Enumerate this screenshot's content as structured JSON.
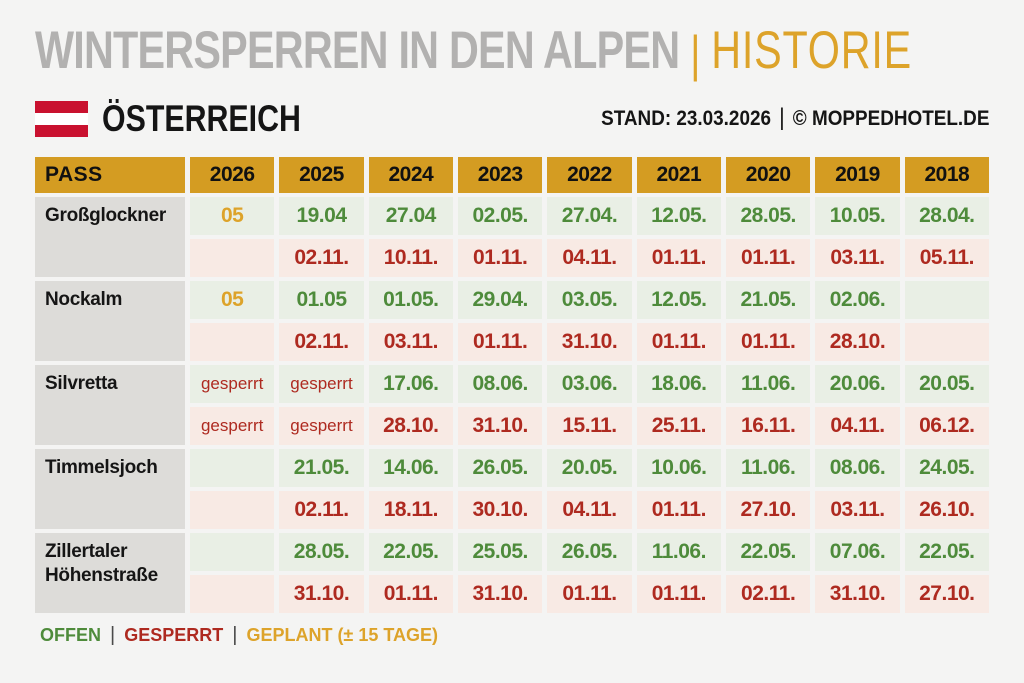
{
  "header": {
    "title": "WINTERSPERREN IN DEN ALPEN",
    "separator": "|",
    "subtitle": "HISTORIE",
    "country": "ÖSTERREICH",
    "stand": "STAND: 23.03.2026",
    "stand_separator": "|",
    "copyright": "© MOPPEDHOTEL.DE"
  },
  "icons": {
    "flag": "austria-flag"
  },
  "chart_data": {
    "type": "table",
    "title": "WINTERSPERREN IN DEN ALPEN | HISTORIE",
    "columns": [
      "PASS",
      "2026",
      "2025",
      "2024",
      "2023",
      "2022",
      "2021",
      "2020",
      "2019",
      "2018"
    ],
    "row_types": [
      "open",
      "close"
    ],
    "passes": [
      {
        "name": "Großglockner",
        "open": [
          {
            "value": "05",
            "kind": "planned"
          },
          "19.04",
          "27.04",
          "02.05.",
          "27.04.",
          "12.05.",
          "28.05.",
          "10.05.",
          "28.04."
        ],
        "close": [
          "",
          "02.11.",
          "10.11.",
          "01.11.",
          "04.11.",
          "01.11.",
          "01.11.",
          "03.11.",
          "05.11."
        ]
      },
      {
        "name": "Nockalm",
        "open": [
          {
            "value": "05",
            "kind": "planned"
          },
          "01.05",
          "01.05.",
          "29.04.",
          "03.05.",
          "12.05.",
          "21.05.",
          "02.06.",
          ""
        ],
        "close": [
          "",
          "02.11.",
          "03.11.",
          "01.11.",
          "31.10.",
          "01.11.",
          "01.11.",
          "28.10.",
          ""
        ]
      },
      {
        "name": "Silvretta",
        "open": [
          {
            "value": "gesperrt",
            "kind": "gesperrt"
          },
          {
            "value": "gesperrt",
            "kind": "gesperrt"
          },
          "17.06.",
          "08.06.",
          "03.06.",
          "18.06.",
          "11.06.",
          "20.06.",
          "20.05."
        ],
        "close": [
          {
            "value": "gesperrt",
            "kind": "gesperrt"
          },
          {
            "value": "gesperrt",
            "kind": "gesperrt"
          },
          "28.10.",
          "31.10.",
          "15.11.",
          "25.11.",
          "16.11.",
          "04.11.",
          "06.12."
        ]
      },
      {
        "name": "Timmelsjoch",
        "open": [
          "",
          "21.05.",
          "14.06.",
          "26.05.",
          "20.05.",
          "10.06.",
          "11.06.",
          "08.06.",
          "24.05."
        ],
        "close": [
          "",
          "02.11.",
          "18.11.",
          "30.10.",
          "04.11.",
          "01.11.",
          "27.10.",
          "03.11.",
          "26.10."
        ]
      },
      {
        "name": "Zillertaler Höhenstraße",
        "open": [
          "",
          "28.05.",
          "22.05.",
          "25.05.",
          "26.05.",
          "11.06.",
          "22.05.",
          "07.06.",
          "22.05."
        ],
        "close": [
          "",
          "31.10.",
          "01.11.",
          "31.10.",
          "01.11.",
          "01.11.",
          "02.11.",
          "31.10.",
          "27.10."
        ]
      }
    ]
  },
  "legend": {
    "open": "OFFEN",
    "closed": "GESPERRT",
    "planned": "GEPLANT (± 15 TAGE)",
    "separator": "|"
  },
  "colors": {
    "page_bg": "#F4F4F3",
    "title_gray": "#B2B1B0",
    "header_gold": "#D49C22",
    "accent_gold": "#DDA32A",
    "green": "#4E8B3B",
    "red": "#AE2A20",
    "open_bg": "#E9EFE5",
    "close_bg": "#F8EAE4",
    "pass_bg": "#DDDCD9",
    "flag_red": "#C9112F",
    "ink": "#151515"
  }
}
